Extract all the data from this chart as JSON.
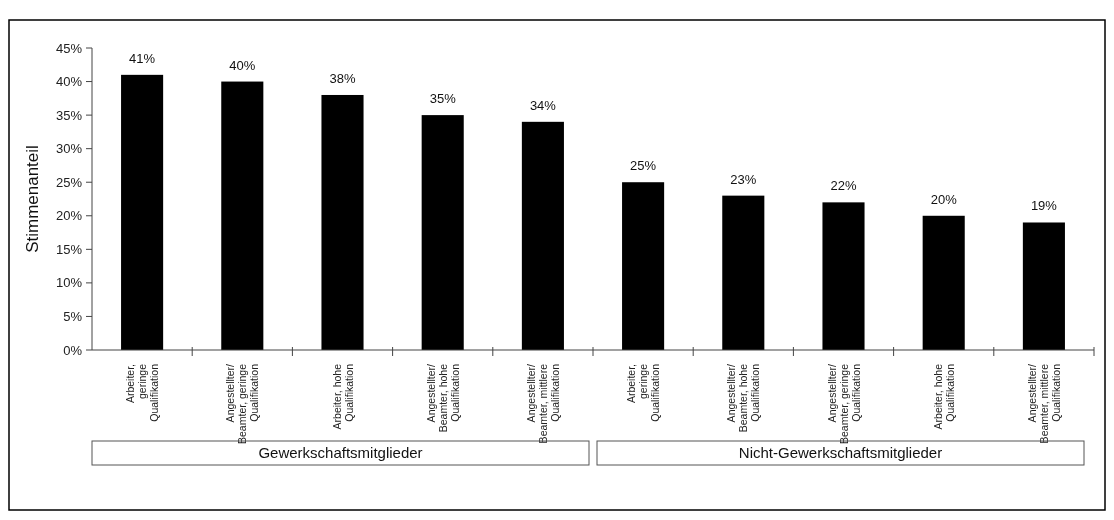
{
  "chart_data": {
    "type": "bar",
    "ylabel": "Stimmenanteil",
    "categories": [
      "Arbeiter,\ngeringe\nQualifikation",
      "Angestellter/\nBeamter, geringe\nQualifikation",
      "Arbeiter, hohe\nQualifikation",
      "Angestellter/\nBeamter, hohe\nQualifikation",
      "Angestellter/\nBeamter, mittlere\nQualifikation",
      "Arbeiter,\ngeringe\nQualifikation",
      "Angestellter/\nBeamter, hohe\nQualifikation",
      "Angestellter/\nBeamter, geringe\nQualifikation",
      "Arbeiter, hohe\nQualifikation",
      "Angestellter/\nBeamter, mittlere\nQualifikation"
    ],
    "values": [
      41,
      40,
      38,
      35,
      34,
      25,
      23,
      22,
      20,
      19
    ],
    "value_labels": [
      "41%",
      "40%",
      "38%",
      "35%",
      "34%",
      "25%",
      "23%",
      "22%",
      "20%",
      "19%"
    ],
    "color": "#000000",
    "ylim": [
      0,
      45
    ],
    "yticks": [
      {
        "value": 0,
        "label": "0%"
      },
      {
        "value": 5,
        "label": "5%"
      },
      {
        "value": 10,
        "label": "10%"
      },
      {
        "value": 15,
        "label": "15%"
      },
      {
        "value": 20,
        "label": "20%"
      },
      {
        "value": 25,
        "label": "25%"
      },
      {
        "value": 30,
        "label": "30%"
      },
      {
        "value": 35,
        "label": "35%"
      },
      {
        "value": 40,
        "label": "40%"
      },
      {
        "value": 45,
        "label": "45%"
      }
    ],
    "annotations": [
      "Gewerkschaftsmitglieder",
      "Nicht-Gewerkschaftsmitglieder"
    ],
    "grid": false
  }
}
